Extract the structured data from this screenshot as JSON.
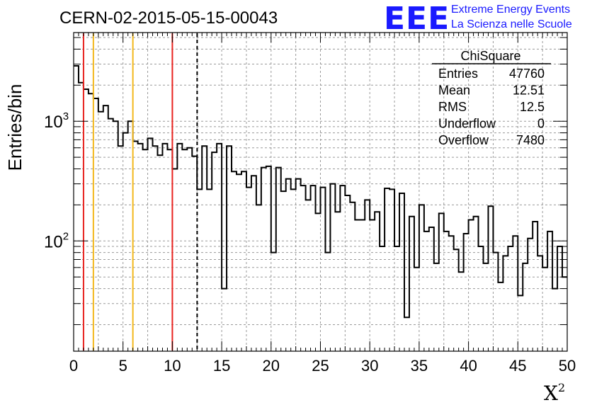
{
  "header": {
    "title": "CERN-02-2015-05-15-00043",
    "logo_text": "EEE",
    "logo_line1": "Extreme Energy Events",
    "logo_line2": "La Scienza nelle Scuole"
  },
  "stats_box": {
    "title": "ChiSquare",
    "rows": [
      {
        "label": "Entries",
        "value": "47760"
      },
      {
        "label": "Mean",
        "value": "12.51"
      },
      {
        "label": "RMS",
        "value": "12.5"
      },
      {
        "label": "Underflow",
        "value": "0"
      },
      {
        "label": "Overflow",
        "value": "7480"
      }
    ]
  },
  "colors": {
    "red_line": "#e8231f",
    "yellow_line": "#f2b81c",
    "histogram": "#000000",
    "grid": "#9a9a9a",
    "logo": "#1a1aff"
  },
  "chart_data": {
    "type": "histogram",
    "xlabel": "X",
    "xlabel_superscript": "2",
    "ylabel": "Entries/bin",
    "xlim": [
      0,
      50
    ],
    "ylim": [
      12,
      5500
    ],
    "yscale": "log",
    "grid": true,
    "x_ticks": [
      0,
      5,
      10,
      15,
      20,
      25,
      30,
      35,
      40,
      45,
      50
    ],
    "y_ticks": [
      {
        "base": "10",
        "exp": "2",
        "value": 100
      },
      {
        "base": "10",
        "exp": "3",
        "value": 1000
      }
    ],
    "bin_width": 0.5,
    "values": [
      2900,
      2100,
      1850,
      1700,
      1550,
      1200,
      1350,
      1050,
      1000,
      620,
      800,
      1000,
      680,
      650,
      580,
      720,
      620,
      520,
      650,
      580,
      400,
      650,
      580,
      600,
      510,
      270,
      620,
      270,
      550,
      650,
      40,
      620,
      380,
      360,
      380,
      280,
      350,
      200,
      410,
      420,
      80,
      410,
      260,
      330,
      270,
      330,
      290,
      220,
      290,
      170,
      280,
      80,
      300,
      175,
      290,
      240,
      210,
      150,
      150,
      220,
      150,
      175,
      90,
      275,
      270,
      90,
      250,
      23,
      160,
      60,
      200,
      120,
      130,
      65,
      170,
      120,
      110,
      85,
      55,
      115,
      150,
      160,
      90,
      65,
      195,
      80,
      45,
      75,
      90,
      110,
      35,
      65,
      105,
      145,
      75,
      60,
      120,
      40,
      90,
      50
    ],
    "vertical_lines": [
      {
        "x": 1,
        "color": "#e8231f",
        "style": "solid"
      },
      {
        "x": 2,
        "color": "#f2b81c",
        "style": "solid"
      },
      {
        "x": 6,
        "color": "#f2b81c",
        "style": "solid"
      },
      {
        "x": 10,
        "color": "#e8231f",
        "style": "solid"
      },
      {
        "x": 12.51,
        "color": "#000000",
        "style": "dashed"
      }
    ]
  }
}
